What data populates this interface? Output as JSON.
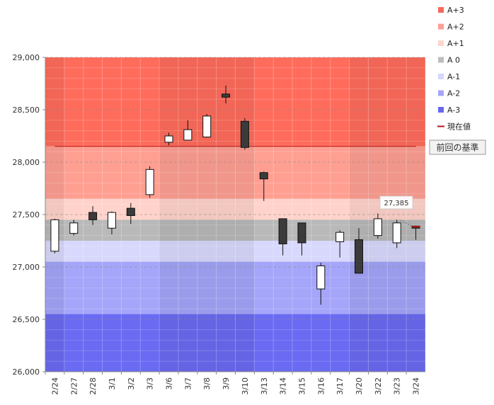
{
  "chart_data": {
    "type": "candlestick",
    "ylim": [
      26000,
      29000
    ],
    "y_ticks": [
      "26,000",
      "26,500",
      "27,000",
      "27,500",
      "28,000",
      "28,500",
      "29,000"
    ],
    "y_tick_values": [
      26000,
      26500,
      27000,
      27500,
      28000,
      28500,
      29000
    ],
    "grid": true,
    "legend_position": "right",
    "reference_value": 28150,
    "reference_label": "前回の基準",
    "current_value_label": "27,385",
    "current_value": 27385,
    "bands": [
      {
        "name": "A+3",
        "from": 28150,
        "to": 29000,
        "color": "#ff6c5c"
      },
      {
        "name": "A+2",
        "from": 27650,
        "to": 28150,
        "color": "#ff9f92"
      },
      {
        "name": "A+1",
        "from": 27450,
        "to": 27650,
        "color": "#ffd3cb"
      },
      {
        "name": "A 0",
        "from": 27250,
        "to": 27450,
        "color": "#b9b9b9"
      },
      {
        "name": "A-1",
        "from": 27050,
        "to": 27250,
        "color": "#d8d8fc"
      },
      {
        "name": "A-2",
        "from": 26550,
        "to": 27050,
        "color": "#a5a5fa"
      },
      {
        "name": "A-3",
        "from": 26000,
        "to": 26550,
        "color": "#6a6af2"
      }
    ],
    "legend": [
      {
        "name": "A+3",
        "color": "#f46a5e"
      },
      {
        "name": "A+2",
        "color": "#fb9f97"
      },
      {
        "name": "A+1",
        "color": "#fdd5cd"
      },
      {
        "name": "A 0",
        "color": "#bdbdbd"
      },
      {
        "name": "A-1",
        "color": "#d7d7fb"
      },
      {
        "name": "A-2",
        "color": "#a6a6f6"
      },
      {
        "name": "A-3",
        "color": "#6767f0"
      },
      {
        "name": "現在値",
        "color": "#b01818"
      }
    ],
    "candles": [
      {
        "date": "2/24",
        "open": 27150,
        "high": 27460,
        "low": 27130,
        "close": 27450
      },
      {
        "date": "2/27",
        "open": 27320,
        "high": 27450,
        "low": 27300,
        "close": 27420
      },
      {
        "date": "2/28",
        "open": 27520,
        "high": 27580,
        "low": 27400,
        "close": 27450
      },
      {
        "date": "3/1",
        "open": 27370,
        "high": 27530,
        "low": 27310,
        "close": 27520
      },
      {
        "date": "3/2",
        "open": 27560,
        "high": 27610,
        "low": 27410,
        "close": 27490
      },
      {
        "date": "3/3",
        "open": 27690,
        "high": 27960,
        "low": 27660,
        "close": 27930
      },
      {
        "date": "3/6",
        "open": 28190,
        "high": 28280,
        "low": 28160,
        "close": 28250
      },
      {
        "date": "3/7",
        "open": 28210,
        "high": 28400,
        "low": 28210,
        "close": 28310
      },
      {
        "date": "3/8",
        "open": 28240,
        "high": 28460,
        "low": 28240,
        "close": 28440
      },
      {
        "date": "3/9",
        "open": 28650,
        "high": 28730,
        "low": 28560,
        "close": 28620
      },
      {
        "date": "3/10",
        "open": 28390,
        "high": 28420,
        "low": 28120,
        "close": 28140
      },
      {
        "date": "3/13",
        "open": 27900,
        "high": 27910,
        "low": 27630,
        "close": 27840
      },
      {
        "date": "3/14",
        "open": 27460,
        "high": 27460,
        "low": 27110,
        "close": 27220
      },
      {
        "date": "3/15",
        "open": 27420,
        "high": 27420,
        "low": 27110,
        "close": 27230
      },
      {
        "date": "3/16",
        "open": 26790,
        "high": 27040,
        "low": 26640,
        "close": 27010
      },
      {
        "date": "3/17",
        "open": 27240,
        "high": 27350,
        "low": 27090,
        "close": 27330
      },
      {
        "date": "3/20",
        "open": 27260,
        "high": 27370,
        "low": 26940,
        "close": 26940
      },
      {
        "date": "3/22",
        "open": 27300,
        "high": 27510,
        "low": 27270,
        "close": 27460
      },
      {
        "date": "3/23",
        "open": 27230,
        "high": 27450,
        "low": 27180,
        "close": 27420
      },
      {
        "date": "3/24",
        "open": 27390,
        "high": 27395,
        "low": 27260,
        "close": 27370
      }
    ],
    "candle_colors": {
      "up_fill": "#ffffff",
      "down_fill": "#3b3b3b",
      "stroke": "#111111"
    }
  }
}
